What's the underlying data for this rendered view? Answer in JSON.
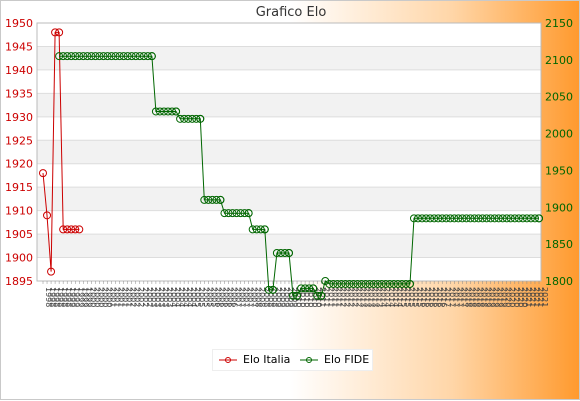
{
  "chart_data": {
    "type": "line",
    "title": "Grafico Elo",
    "x_tick_labels": [
      "1998",
      "1999",
      "2000",
      "2001",
      "2002",
      "2003",
      "2004",
      "2005",
      "2006",
      "2007",
      "2008",
      "2009",
      "2010",
      "2011",
      "2012",
      "2013",
      "2014",
      "2015",
      "2016",
      "2017",
      "2018",
      "2019",
      "2020",
      "2021"
    ],
    "left_axis": {
      "ylim": [
        1895,
        1950
      ],
      "ticks": [
        1895,
        1900,
        1905,
        1910,
        1915,
        1920,
        1925,
        1930,
        1935,
        1940,
        1945,
        1950
      ],
      "color": "#cc0000"
    },
    "right_axis": {
      "ylim": [
        1800,
        2150
      ],
      "ticks": [
        1800,
        1850,
        1900,
        1950,
        2000,
        2050,
        2100,
        2150
      ],
      "color": "#006600"
    },
    "series": [
      {
        "name": "Elo Italia",
        "axis": "left",
        "color": "#cc0000",
        "x": [
          0,
          1,
          2,
          3,
          4,
          5,
          6,
          7,
          8,
          9
        ],
        "y": [
          1918,
          1909,
          1897,
          1948,
          1948,
          1906,
          1906,
          1906,
          1906,
          1906
        ]
      },
      {
        "name": "Elo FIDE",
        "axis": "right",
        "color": "#006600",
        "x": [
          4,
          27,
          28,
          33,
          34,
          39,
          40,
          44,
          45,
          51,
          52,
          55,
          56,
          57,
          58,
          61,
          62,
          63,
          64,
          67,
          68,
          69,
          70,
          71,
          91,
          92,
          123
        ],
        "y": [
          2105,
          2105,
          2030,
          2030,
          2020,
          2020,
          1910,
          1910,
          1892,
          1892,
          1870,
          1870,
          1788,
          1788,
          1838,
          1838,
          1780,
          1780,
          1790,
          1790,
          1780,
          1780,
          1800,
          1796,
          1796,
          1885,
          1885
        ]
      }
    ],
    "x_count": 124,
    "legend_position": "bottom-center",
    "grid": true
  }
}
